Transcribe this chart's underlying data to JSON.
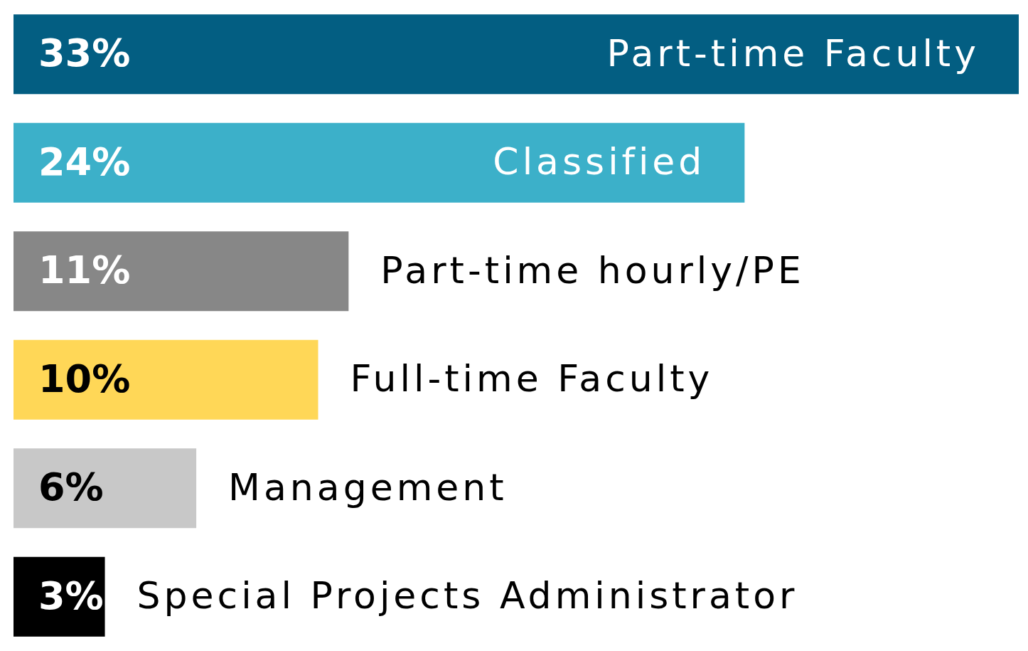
{
  "chart_data": {
    "type": "bar",
    "orientation": "horizontal",
    "categories": [
      "Part-time Faculty",
      "Classified",
      "Part-time hourly/PE",
      "Full-time Faculty",
      "Management",
      "Special Projects Administrator"
    ],
    "values": [
      33,
      24,
      11,
      10,
      6,
      3
    ],
    "colors": [
      "#035e82",
      "#3cb0c9",
      "#878787",
      "#ffd757",
      "#c8c8c8",
      "#000000"
    ],
    "value_labels": [
      "33%",
      "24%",
      "11%",
      "10%",
      "6%",
      "3%"
    ]
  }
}
